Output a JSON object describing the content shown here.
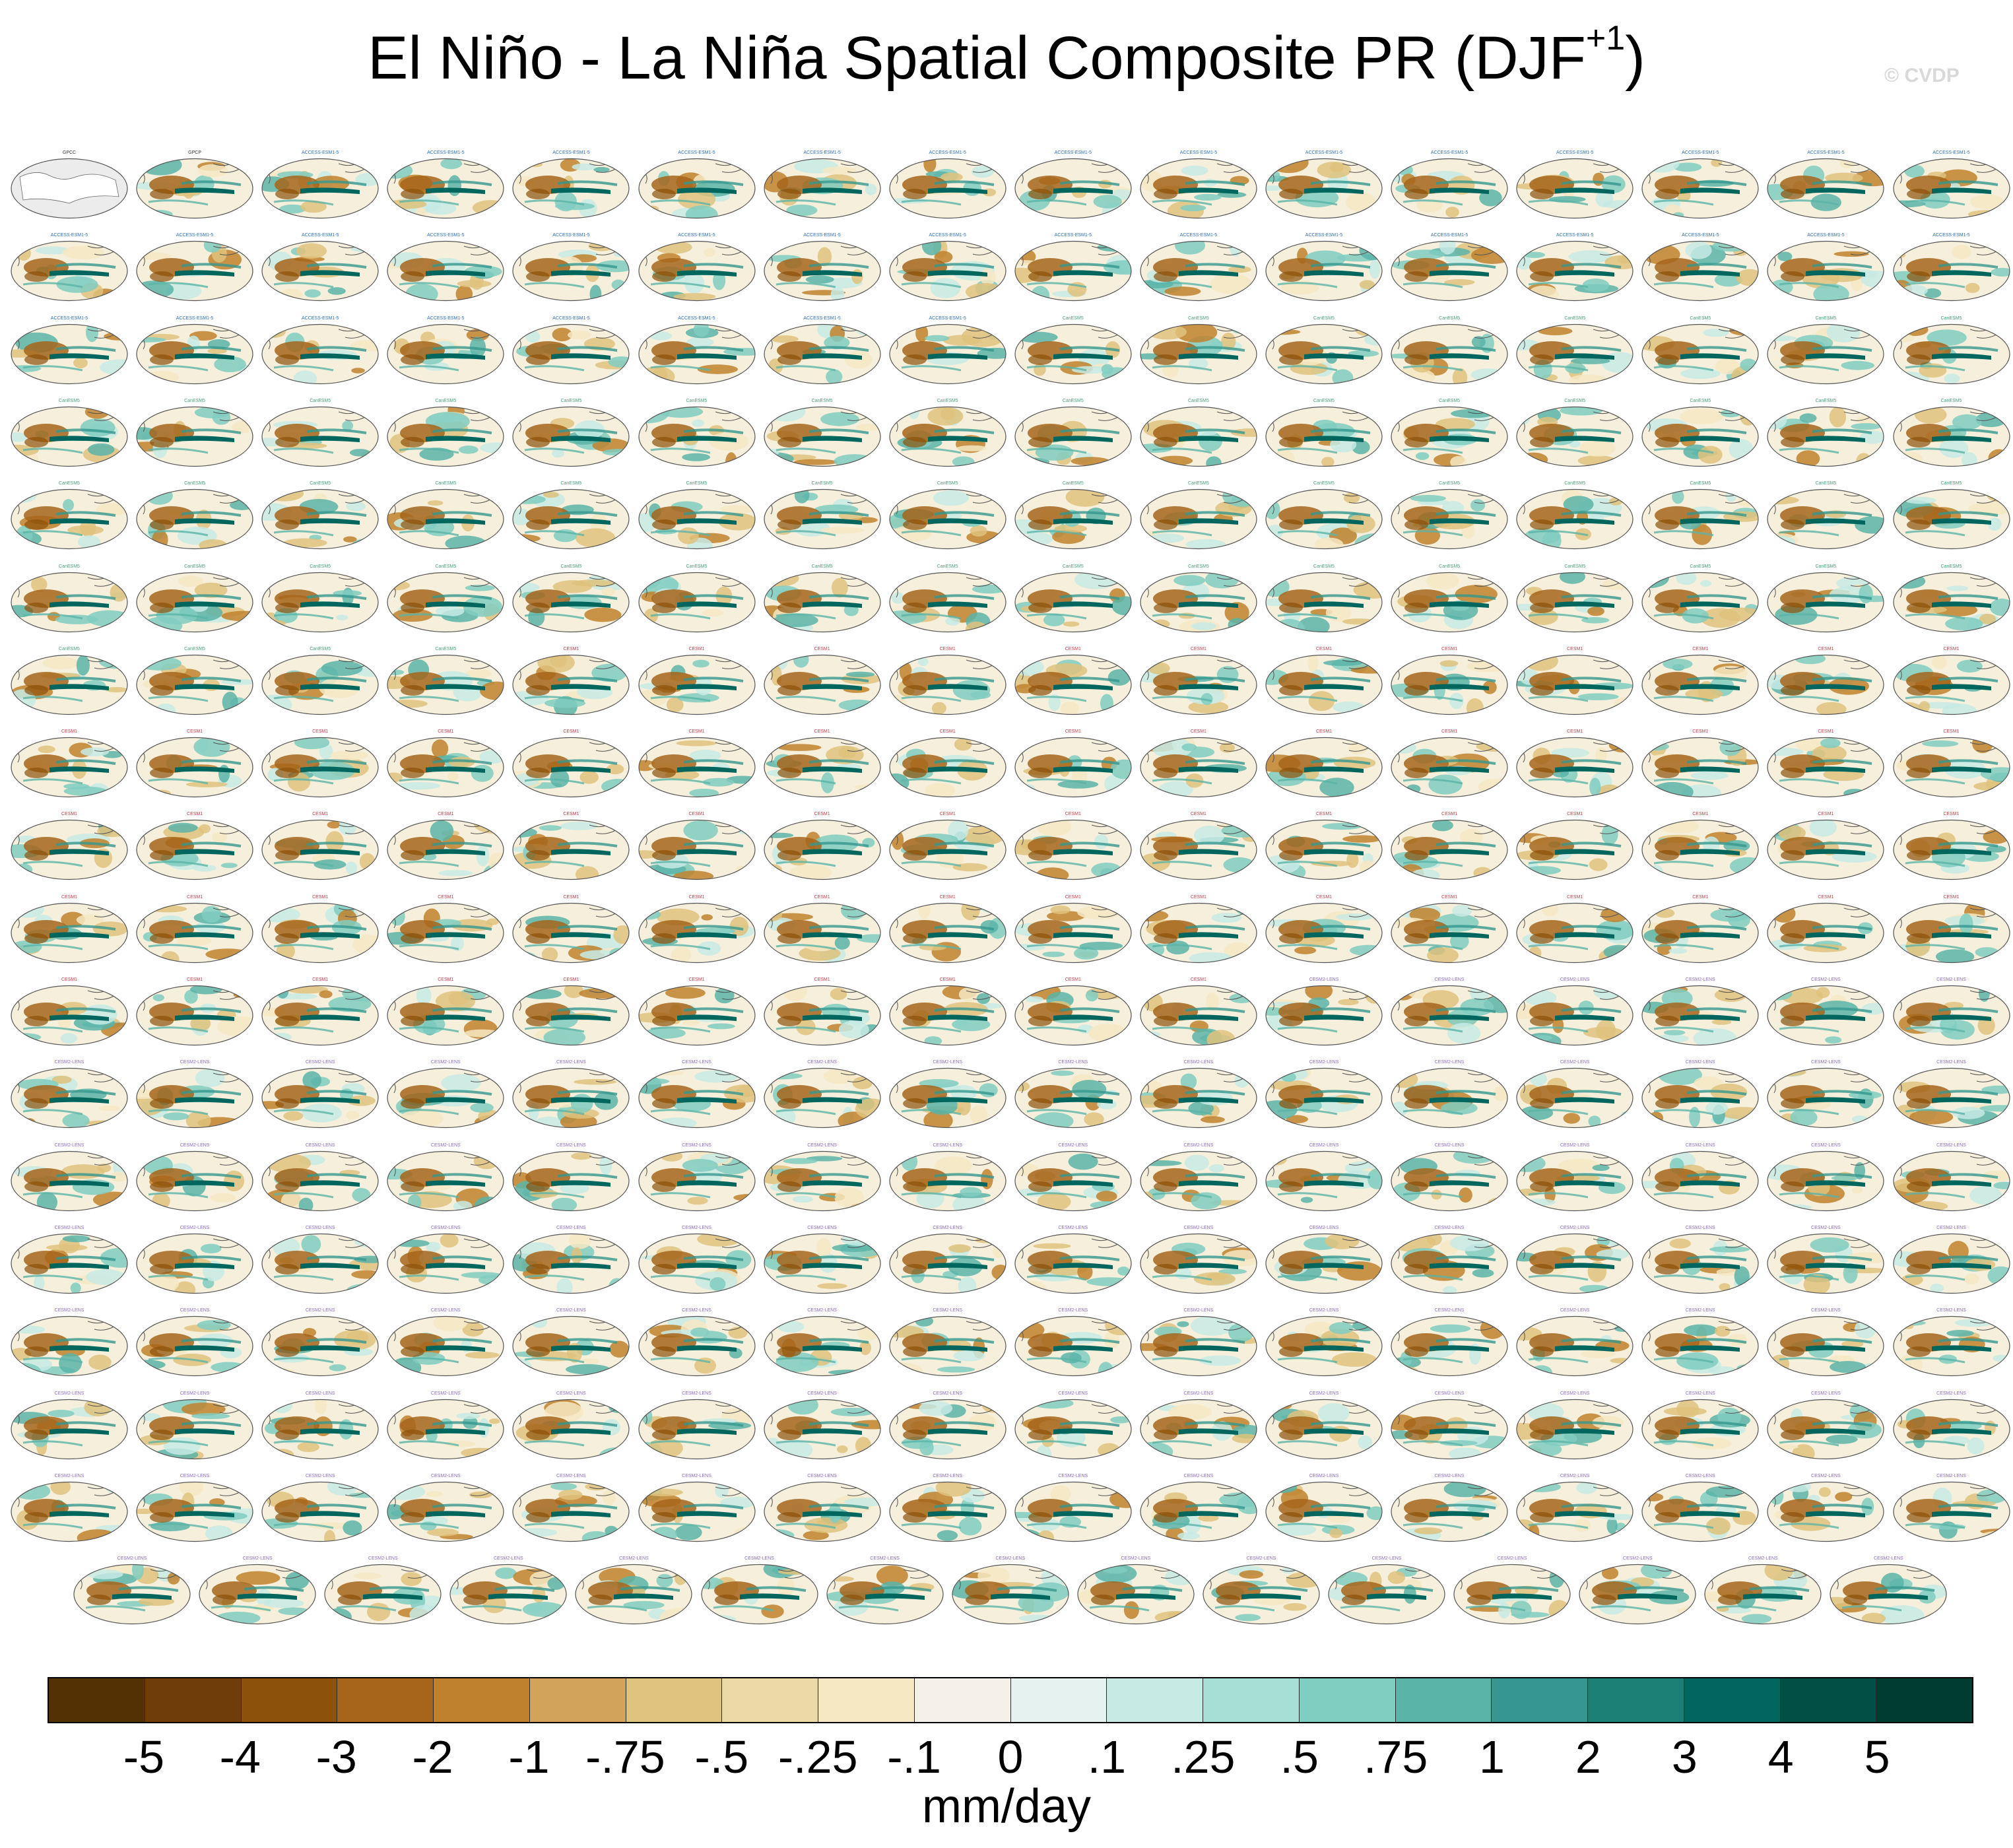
{
  "title": {
    "main": "El Niño - La Niña Spatial Composite PR (DJF",
    "superscript": "+1",
    "close": ")"
  },
  "watermark": "© CVDP",
  "chart_data": {
    "type": "panel-grid-map",
    "title": "El Niño - La Niña Spatial Composite PR (DJF+1)",
    "variable": "PR",
    "season": "DJF+1",
    "panel_rows": 18,
    "panel_columns": 16,
    "last_row_panels": 15,
    "total_panels": 287,
    "panel_labels": {
      "observations": [
        "GPCC",
        "GPCP"
      ],
      "model_families": [
        "ACCESS-ESM1-5",
        "CanESM5",
        "CESM1",
        "CESM2-LENS"
      ]
    },
    "colorbar": {
      "units": "mm/day",
      "tick_labels": [
        "-5",
        "-4",
        "-3",
        "-2",
        "-1",
        "-.75",
        "-.5",
        "-.25",
        "-.1",
        "0",
        ".1",
        ".25",
        ".5",
        ".75",
        "1",
        "2",
        "3",
        "4",
        "5"
      ],
      "colors": [
        "#543005",
        "#6f3d0a",
        "#8c510a",
        "#a6651b",
        "#bf812d",
        "#d2a35a",
        "#dfc27d",
        "#ecd9a8",
        "#f6e8c3",
        "#f5f1e8",
        "#e6f2ef",
        "#c7eae5",
        "#a6ddd4",
        "#80cdc1",
        "#5ab4a8",
        "#35978f",
        "#1a8075",
        "#01665e",
        "#014f45",
        "#003c30"
      ]
    }
  }
}
